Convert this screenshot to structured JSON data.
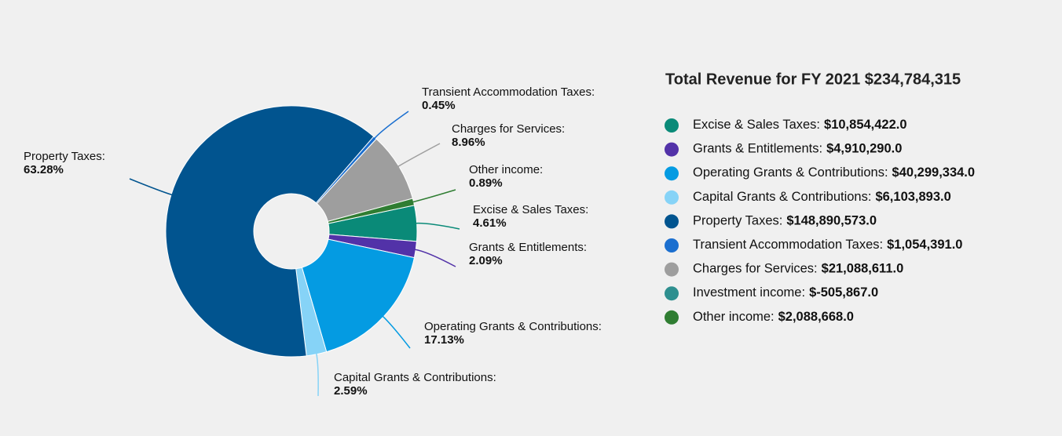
{
  "chart_data": {
    "type": "pie",
    "categories": [
      "Excise & Sales Taxes:",
      "Grants & Entitlements:",
      "Operating Grants & Contributions:",
      "Capital Grants & Contributions:",
      "Property Taxes:",
      "Transient Accommodation Taxes:",
      "Charges for Services:",
      "Other income:"
    ],
    "values": [
      4.61,
      2.09,
      17.13,
      2.59,
      63.28,
      0.45,
      8.96,
      0.89
    ],
    "value_labels": [
      "4.61%",
      "2.09%",
      "17.13%",
      "2.59%",
      "63.28%",
      "0.45%",
      "8.96%",
      "0.89%"
    ],
    "colors": [
      "#0a8a78",
      "#5232a8",
      "#049be2",
      "#86d3f7",
      "#01548f",
      "#1b6fcf",
      "#9e9e9e",
      "#2f7d32"
    ]
  },
  "legend": {
    "title": "Total Revenue for FY 2021 $234,784,315",
    "items": [
      {
        "name": "Excise & Sales Taxes:",
        "value": 10854422.0,
        "value_label": "$10,854,422.0",
        "color": "#0a8a78"
      },
      {
        "name": "Grants & Entitlements:",
        "value": 4910290.0,
        "value_label": "$4,910,290.0",
        "color": "#5232a8"
      },
      {
        "name": "Operating Grants & Contributions:",
        "value": 40299334.0,
        "value_label": "$40,299,334.0",
        "color": "#049be2"
      },
      {
        "name": "Capital Grants & Contributions:",
        "value": 6103893.0,
        "value_label": "$6,103,893.0",
        "color": "#86d3f7"
      },
      {
        "name": "Property Taxes:",
        "value": 148890573.0,
        "value_label": "$148,890,573.0",
        "color": "#01548f"
      },
      {
        "name": "Transient Accommodation Taxes:",
        "value": 1054391.0,
        "value_label": "$1,054,391.0",
        "color": "#1b6fcf"
      },
      {
        "name": "Charges for Services:",
        "value": 21088611.0,
        "value_label": "$21,088,611.0",
        "color": "#9e9e9e"
      },
      {
        "name": "Investment income:",
        "value": -505867.0,
        "value_label": "$-505,867.0",
        "color": "#2e8f8f"
      },
      {
        "name": "Other income:",
        "value": 2088668.0,
        "value_label": "$2,088,668.0",
        "color": "#2f7d32"
      }
    ]
  }
}
